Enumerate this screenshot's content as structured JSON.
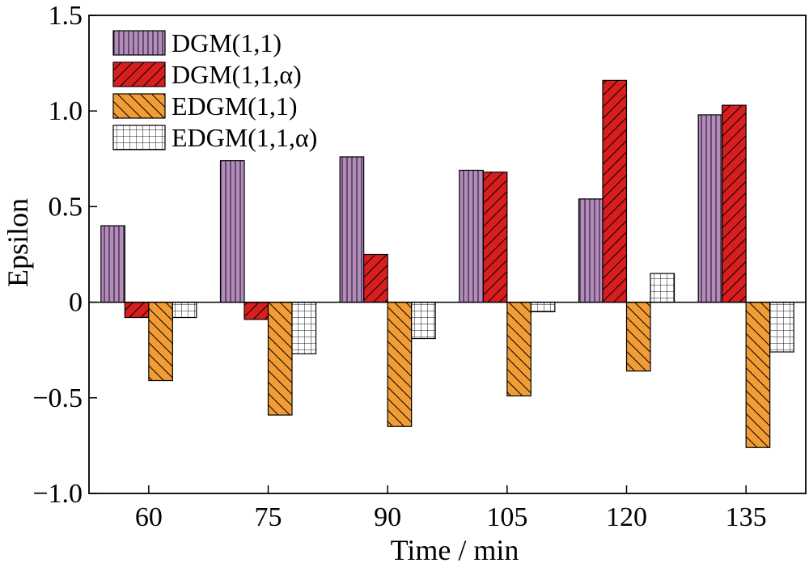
{
  "chart_data": {
    "type": "bar",
    "title": "",
    "xlabel": "Time / min",
    "ylabel": "Epsilon",
    "categories": [
      "60",
      "75",
      "90",
      "105",
      "120",
      "135"
    ],
    "ylim": [
      -1.0,
      1.5
    ],
    "yticks": [
      -1.0,
      -0.5,
      0,
      0.5,
      1.0,
      1.5
    ],
    "ytick_labels": [
      "−1.0",
      "−0.5",
      "0",
      "0.5",
      "1.0",
      "1.5"
    ],
    "grid": false,
    "legend_position": "top-left",
    "series": [
      {
        "name": "DGM(1,1)",
        "values": [
          0.4,
          0.74,
          0.76,
          0.69,
          0.54,
          0.98
        ],
        "color": "#b48bbd",
        "pattern": "vertical-lines"
      },
      {
        "name": "DGM(1,1,α)",
        "values": [
          -0.08,
          -0.09,
          0.25,
          0.68,
          1.16,
          1.03
        ],
        "color": "#d81e1e",
        "pattern": "diagonal-lines"
      },
      {
        "name": "EDGM(1,1)",
        "values": [
          -0.41,
          -0.59,
          -0.65,
          -0.49,
          -0.36,
          -0.76
        ],
        "color": "#f29c35",
        "pattern": "back-diagonal-lines"
      },
      {
        "name": "EDGM(1,1,α)",
        "values": [
          -0.08,
          -0.27,
          -0.19,
          -0.05,
          0.15,
          -0.26
        ],
        "color": "#ffffff",
        "pattern": "grid"
      }
    ]
  }
}
